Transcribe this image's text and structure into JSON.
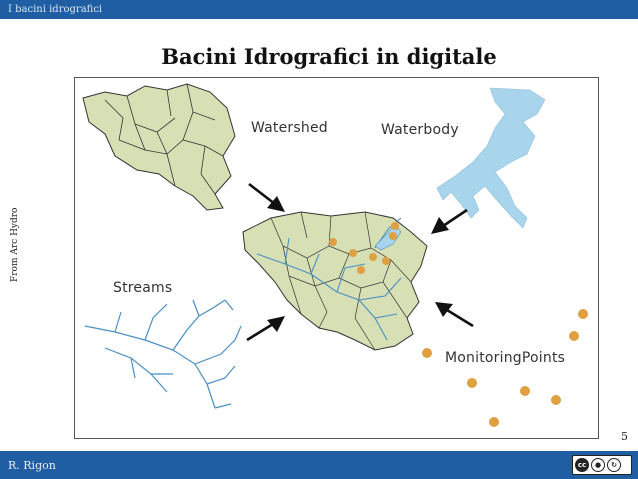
{
  "header": {
    "section": "I bacini idrografici"
  },
  "slide": {
    "title": "Bacini Idrografici in digitale",
    "side_note": "From Arc Hydro",
    "page_number": "5"
  },
  "figure": {
    "labels": {
      "watershed": "Watershed",
      "waterbody": "Waterbody",
      "streams": "Streams",
      "monitoring_points": "MonitoringPoints"
    },
    "colors": {
      "watershed_fill": "#d6e0b4",
      "watershed_stroke": "#333333",
      "water": "#a8d4ec",
      "stream": "#4a8fc4",
      "point": "#e0a040",
      "arrow": "#111111"
    }
  },
  "footer": {
    "author": "R. Rigon",
    "license_badge": "cc by sa",
    "license_icons": [
      "cc-icon",
      "by-icon",
      "sa-icon"
    ]
  }
}
